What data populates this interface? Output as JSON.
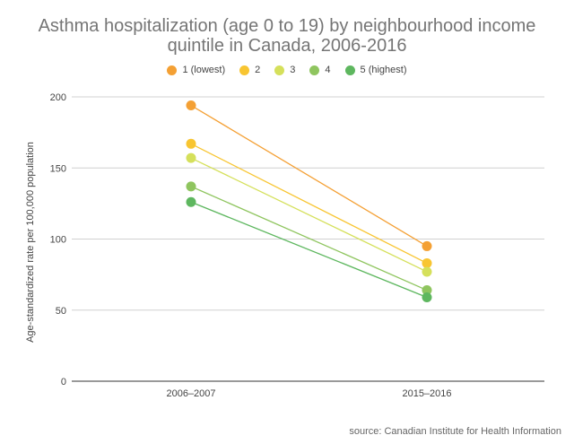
{
  "chart_data": {
    "type": "line",
    "title_lines": [
      "Asthma hospitalization (age 0 to 19) by neighbourhood income",
      "quintile in Canada, 2006-2016"
    ],
    "ylabel": "Age-standardized rate per 100,000 population",
    "categories": [
      "2006–2007",
      "2015–2016"
    ],
    "y_ticks": [
      "0",
      "50",
      "100",
      "150",
      "200"
    ],
    "ylim": [
      0,
      200
    ],
    "grid": true,
    "legend_position": "top-center",
    "series": [
      {
        "name": "1 (lowest)",
        "values": [
          194,
          95
        ],
        "color": "#f4a034"
      },
      {
        "name": "2",
        "values": [
          167,
          83
        ],
        "color": "#f8c531"
      },
      {
        "name": "3",
        "values": [
          157,
          77
        ],
        "color": "#d5e05b"
      },
      {
        "name": "4",
        "values": [
          137,
          64
        ],
        "color": "#8fc55f"
      },
      {
        "name": "5 (highest)",
        "values": [
          126,
          59
        ],
        "color": "#5eb75f"
      }
    ],
    "source": "source: Canadian Institute for Health Information"
  }
}
